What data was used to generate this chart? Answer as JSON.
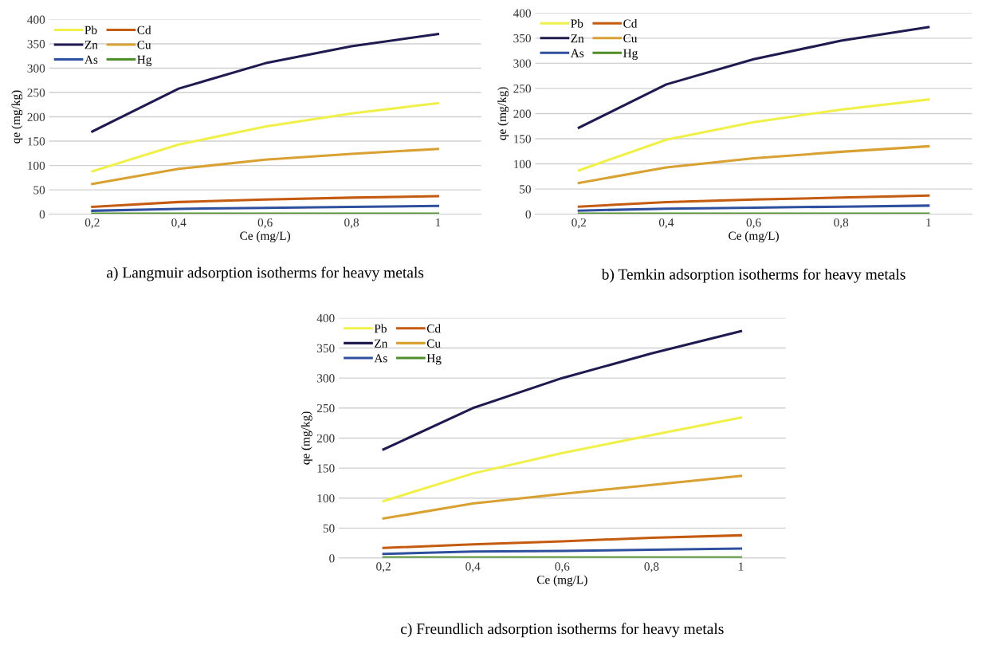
{
  "chart_data": [
    {
      "type": "line",
      "title": "a) Langmuir adsorption isotherms for heavy metals",
      "xlabel": "Ce (mg/L)",
      "ylabel": "qe (mg/kg)",
      "categories": [
        "0,2",
        "0,4",
        "0,6",
        "0,8",
        "1"
      ],
      "ylim": [
        0,
        400
      ],
      "yticks": [
        0,
        50,
        100,
        150,
        200,
        250,
        300,
        350,
        400
      ],
      "grid": "y",
      "legend": "top left",
      "series": [
        {
          "name": "Pb",
          "color": "#f0f04a",
          "values": [
            88,
            143,
            180,
            207,
            228
          ]
        },
        {
          "name": "Cd",
          "color": "#c55a11",
          "values": [
            15,
            25,
            30,
            34,
            37
          ]
        },
        {
          "name": "Zn",
          "color": "#1f1a4f",
          "values": [
            170,
            258,
            310,
            345,
            370
          ]
        },
        {
          "name": "Cu",
          "color": "#d9a032",
          "values": [
            62,
            93,
            112,
            124,
            134
          ]
        },
        {
          "name": "As",
          "color": "#2f4f9f",
          "values": [
            7,
            11,
            13,
            15,
            17
          ]
        },
        {
          "name": "Hg",
          "color": "#4e8f2a",
          "values": [
            1,
            1,
            1,
            1,
            1
          ]
        }
      ]
    },
    {
      "type": "line",
      "title": "b) Temkin adsorption isotherms for heavy metals",
      "xlabel": "Ce (mg/L)",
      "ylabel": "qe (mg/kg)",
      "categories": [
        "0,2",
        "0,4",
        "0,6",
        "0,8",
        "1"
      ],
      "ylim": [
        0,
        400
      ],
      "yticks": [
        0,
        50,
        100,
        150,
        200,
        250,
        300,
        350,
        400
      ],
      "grid": "y",
      "legend": "top left",
      "series": [
        {
          "name": "Pb",
          "color": "#f0f04a",
          "values": [
            87,
            148,
            183,
            208,
            228
          ]
        },
        {
          "name": "Cd",
          "color": "#c55a11",
          "values": [
            15,
            24,
            29,
            33,
            37
          ]
        },
        {
          "name": "Zn",
          "color": "#1f1a4f",
          "values": [
            172,
            258,
            308,
            345,
            372
          ]
        },
        {
          "name": "Cu",
          "color": "#d9a032",
          "values": [
            62,
            93,
            111,
            124,
            135
          ]
        },
        {
          "name": "As",
          "color": "#2f4f9f",
          "values": [
            7,
            11,
            13,
            15,
            17
          ]
        },
        {
          "name": "Hg",
          "color": "#4e8f2a",
          "values": [
            1,
            1,
            1,
            1,
            1
          ]
        }
      ]
    },
    {
      "type": "line",
      "title": "c) Freundlich adsorption isotherms for heavy metals",
      "xlabel": "Ce (mg/L)",
      "ylabel": "qe (mg/kg)",
      "categories": [
        "0,2",
        "0,4",
        "0,6",
        "0,8",
        "1"
      ],
      "ylim": [
        0,
        400
      ],
      "yticks": [
        0,
        50,
        100,
        150,
        200,
        250,
        300,
        350,
        400
      ],
      "grid": "y",
      "legend": "top left",
      "series": [
        {
          "name": "Pb",
          "color": "#f0f04a",
          "values": [
            95,
            141,
            175,
            205,
            234
          ]
        },
        {
          "name": "Cd",
          "color": "#c55a11",
          "values": [
            17,
            23,
            28,
            34,
            38
          ]
        },
        {
          "name": "Zn",
          "color": "#1f1a4f",
          "values": [
            181,
            250,
            300,
            341,
            378
          ]
        },
        {
          "name": "Cu",
          "color": "#d9a032",
          "values": [
            66,
            91,
            107,
            122,
            137
          ]
        },
        {
          "name": "As",
          "color": "#2f4f9f",
          "values": [
            7,
            11,
            12,
            14,
            16
          ]
        },
        {
          "name": "Hg",
          "color": "#4e8f2a",
          "values": [
            1,
            1,
            1,
            1,
            1
          ]
        }
      ]
    }
  ]
}
